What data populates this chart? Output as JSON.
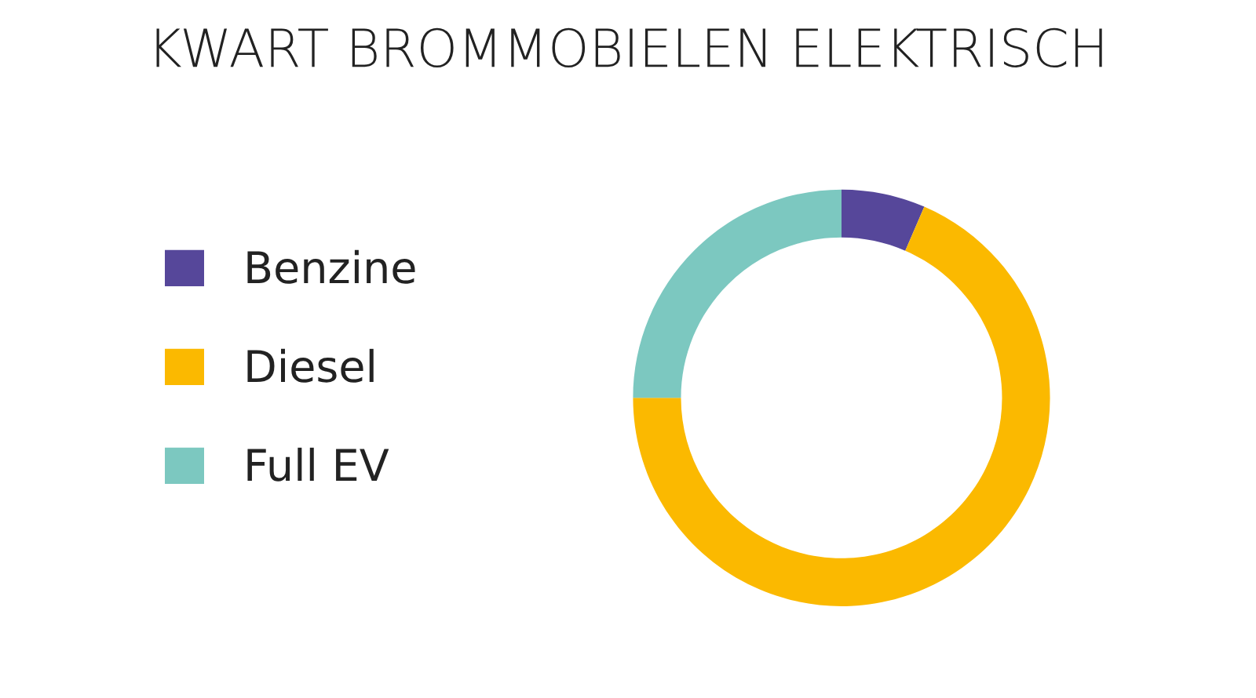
{
  "chart_data": {
    "type": "donut",
    "title": "KWART BROMMOBIELEN ELEKTRISCH",
    "categories": [
      "Benzine",
      "Diesel",
      "Full EV"
    ],
    "values": [
      6.5,
      68.5,
      25
    ],
    "colors": [
      "#56479a",
      "#fbb900",
      "#7cc8c0"
    ],
    "legend": "left"
  }
}
